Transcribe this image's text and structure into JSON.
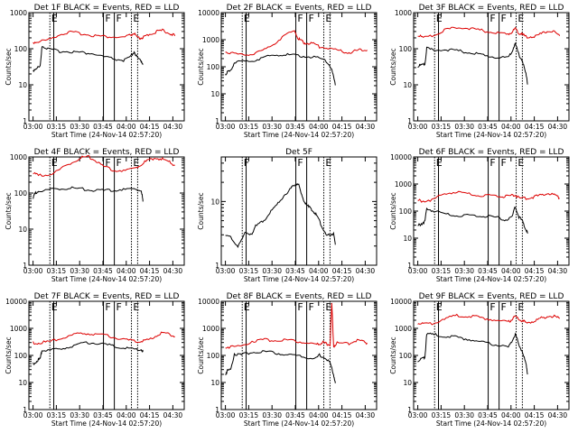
{
  "xlabel": "Start Time (24-Nov-14 02:57:20)",
  "ylabel": "Counts/sec",
  "x_tick_labels": [
    "03:00",
    "03:15",
    "03:30",
    "03:45",
    "04:00",
    "04:15",
    "04:30"
  ],
  "y_tick_labels": [
    "1",
    "10",
    "100",
    "1000",
    "10000"
  ],
  "colors": {
    "events": "#000000",
    "lld": "#dd0000"
  },
  "chart_data": [
    {
      "type": "line",
      "title": "Det 1F BLACK = Events, RED = LLD",
      "ylim": [
        1,
        1000
      ],
      "start": 13.5,
      "end": 44.5,
      "segments": [
        "E",
        "F",
        "F",
        "E"
      ],
      "series": [
        {
          "name": "Events",
          "x": [
            13.5,
            14.5,
            15.5,
            16,
            18,
            21,
            24,
            27,
            30,
            33,
            36,
            39,
            41,
            42,
            43,
            44,
            44.5
          ],
          "y": [
            25,
            28,
            30,
            120,
            100,
            90,
            85,
            75,
            70,
            60,
            55,
            50,
            60,
            80,
            50,
            45,
            40
          ]
        },
        {
          "name": "LLD",
          "x": [
            13.5,
            15,
            18,
            21,
            24,
            27,
            30,
            33,
            36,
            39,
            41,
            42,
            43,
            44,
            45,
            46,
            48,
            50,
            52,
            53.5
          ],
          "y": [
            150,
            150,
            170,
            250,
            300,
            280,
            240,
            210,
            200,
            200,
            250,
            280,
            200,
            190,
            200,
            240,
            300,
            340,
            280,
            220
          ]
        }
      ]
    },
    {
      "type": "line",
      "title": "Det 2F BLACK = Events, RED = LLD",
      "ylim": [
        1,
        10000
      ],
      "start": 13.5,
      "end": 44.5,
      "segments": [
        "E",
        "F",
        "F",
        "E"
      ],
      "series": [
        {
          "name": "Events",
          "x": [
            13.5,
            14,
            15,
            16,
            18,
            21,
            24,
            27,
            30,
            33,
            36,
            39,
            42,
            43.5,
            44.5
          ],
          "y": [
            50,
            60,
            70,
            150,
            160,
            170,
            200,
            250,
            280,
            270,
            260,
            230,
            150,
            80,
            20
          ]
        },
        {
          "name": "LLD",
          "x": [
            13.5,
            15,
            18,
            21,
            24,
            27,
            30,
            33,
            34,
            35,
            36,
            38,
            40,
            42,
            45,
            48,
            50,
            52,
            53.5
          ],
          "y": [
            350,
            300,
            280,
            300,
            400,
            700,
            1300,
            2000,
            1100,
            900,
            800,
            750,
            520,
            480,
            400,
            350,
            400,
            450,
            400
          ]
        }
      ]
    },
    {
      "type": "line",
      "title": "Det 3F BLACK = Events, RED = LLD",
      "ylim": [
        1,
        1000
      ],
      "start": 13.5,
      "end": 44.5,
      "segments": [
        "E",
        "F",
        "F",
        "E"
      ],
      "series": [
        {
          "name": "Events",
          "x": [
            13.5,
            14.5,
            15.5,
            16,
            18,
            21,
            24,
            27,
            30,
            33,
            36,
            39,
            40,
            41,
            42,
            43,
            44,
            44.5
          ],
          "y": [
            30,
            35,
            40,
            110,
            90,
            90,
            85,
            80,
            75,
            65,
            60,
            55,
            80,
            130,
            70,
            50,
            20,
            10
          ]
        },
        {
          "name": "LLD",
          "x": [
            13.5,
            15,
            18,
            21,
            24,
            27,
            30,
            33,
            36,
            39,
            40,
            41,
            42,
            43,
            44,
            46,
            48,
            50,
            52,
            53.5
          ],
          "y": [
            220,
            200,
            250,
            350,
            380,
            360,
            320,
            300,
            280,
            260,
            300,
            350,
            260,
            240,
            220,
            230,
            260,
            300,
            280,
            220
          ]
        }
      ]
    },
    {
      "type": "line",
      "title": "Det 4F BLACK = Events, RED = LLD",
      "ylim": [
        1,
        1000
      ],
      "start": 13.5,
      "end": 44.5,
      "segments": [
        "E",
        "F",
        "F",
        "E"
      ],
      "series": [
        {
          "name": "Events",
          "x": [
            13.5,
            14,
            15,
            18,
            21,
            24,
            27,
            30,
            33,
            36,
            39,
            42,
            44,
            44.5
          ],
          "y": [
            70,
            100,
            120,
            125,
            128,
            130,
            128,
            126,
            125,
            124,
            122,
            120,
            118,
            60
          ]
        },
        {
          "name": "LLD",
          "x": [
            13.5,
            15,
            18,
            21,
            24,
            27,
            29,
            31,
            33,
            36,
            39,
            42,
            44,
            46,
            48,
            50,
            52,
            53.5
          ],
          "y": [
            350,
            320,
            340,
            450,
            650,
            900,
            1000,
            850,
            600,
            450,
            400,
            450,
            600,
            850,
            1000,
            900,
            700,
            550
          ]
        }
      ]
    },
    {
      "type": "line",
      "title": "Det 5F",
      "ylim": [
        1,
        50
      ],
      "start": 13.5,
      "end": 44.5,
      "segments": [
        "F",
        "F",
        "E"
      ],
      "series": [
        {
          "name": "Events",
          "x": [
            13.5,
            15,
            17,
            19,
            21,
            22,
            24,
            26,
            28,
            30,
            32,
            33,
            34,
            35,
            36,
            37,
            38,
            39,
            40,
            41,
            42,
            43,
            44,
            44.5
          ],
          "y": [
            3,
            3,
            2,
            3,
            3,
            4,
            5,
            7,
            9,
            12,
            15,
            18,
            20,
            13,
            10,
            8,
            7,
            6,
            5,
            4,
            3,
            3,
            3,
            2
          ]
        }
      ]
    },
    {
      "type": "line",
      "title": "Det 6F BLACK = Events, RED = LLD",
      "ylim": [
        1,
        10000
      ],
      "start": 13.5,
      "end": 44.5,
      "segments": [
        "E",
        "F",
        "F",
        "E"
      ],
      "series": [
        {
          "name": "Events",
          "x": [
            13.5,
            14.5,
            15.5,
            16,
            18,
            21,
            24,
            27,
            30,
            33,
            36,
            38,
            40,
            41,
            42,
            43,
            44,
            44.5
          ],
          "y": [
            30,
            35,
            40,
            120,
            100,
            80,
            75,
            70,
            65,
            60,
            55,
            50,
            60,
            150,
            60,
            40,
            20,
            15
          ]
        },
        {
          "name": "LLD",
          "x": [
            13.5,
            15,
            18,
            21,
            24,
            27,
            30,
            33,
            36,
            38,
            40,
            41,
            42,
            44,
            46,
            48,
            50,
            52,
            53.5
          ],
          "y": [
            260,
            240,
            260,
            420,
            500,
            460,
            420,
            380,
            350,
            320,
            360,
            420,
            320,
            300,
            320,
            360,
            440,
            400,
            320
          ]
        }
      ]
    },
    {
      "type": "line",
      "title": "Det 7F BLACK = Events, RED = LLD",
      "ylim": [
        1,
        10000
      ],
      "start": 13.5,
      "end": 44.5,
      "segments": [
        "E",
        "F",
        "F",
        "E"
      ],
      "series": [
        {
          "name": "Events",
          "x": [
            13.5,
            14.5,
            15.5,
            16,
            18,
            21,
            24,
            27,
            30,
            33,
            36,
            39,
            42,
            44,
            44.5
          ],
          "y": [
            50,
            60,
            70,
            150,
            160,
            180,
            220,
            260,
            280,
            260,
            230,
            200,
            180,
            160,
            130
          ]
        },
        {
          "name": "LLD",
          "x": [
            13.5,
            15,
            18,
            21,
            24,
            27,
            30,
            33,
            36,
            39,
            42,
            44,
            46,
            48,
            50,
            52,
            53.5
          ],
          "y": [
            300,
            280,
            300,
            400,
            550,
            700,
            650,
            550,
            450,
            380,
            350,
            350,
            400,
            500,
            650,
            600,
            500
          ]
        }
      ]
    },
    {
      "type": "line",
      "title": "Det 8F BLACK = Events, RED = LLD",
      "ylim": [
        1,
        10000
      ],
      "start": 13.5,
      "end": 44.5,
      "segments": [
        "E",
        "F",
        "F",
        "E"
      ],
      "series": [
        {
          "name": "Events",
          "x": [
            13.5,
            14,
            15,
            16,
            18,
            21,
            24,
            27,
            30,
            33,
            36,
            39,
            40,
            42,
            43,
            44,
            44.5
          ],
          "y": [
            20,
            25,
            30,
            120,
            110,
            140,
            130,
            120,
            110,
            100,
            90,
            80,
            100,
            70,
            50,
            20,
            10
          ]
        },
        {
          "name": "LLD",
          "x": [
            13.5,
            15,
            18,
            21,
            24,
            27,
            30,
            33,
            36,
            39,
            40,
            41,
            42,
            43,
            43.5,
            44,
            45,
            48,
            50,
            52,
            53.5
          ],
          "y": [
            200,
            190,
            220,
            350,
            400,
            380,
            350,
            320,
            300,
            250,
            280,
            320,
            260,
            230,
            8000,
            220,
            300,
            280,
            350,
            320,
            270
          ]
        }
      ]
    },
    {
      "type": "line",
      "title": "Det 9F BLACK = Events, RED = LLD",
      "ylim": [
        1,
        10000
      ],
      "start": 13.5,
      "end": 44.5,
      "segments": [
        "E",
        "F",
        "F",
        "E"
      ],
      "series": [
        {
          "name": "Events",
          "x": [
            13.5,
            14.5,
            15.5,
            16,
            18,
            21,
            24,
            27,
            30,
            33,
            36,
            39,
            40,
            41,
            42,
            43,
            44,
            44.5
          ],
          "y": [
            60,
            70,
            90,
            700,
            600,
            500,
            450,
            400,
            350,
            300,
            250,
            200,
            300,
            600,
            250,
            150,
            50,
            20
          ]
        },
        {
          "name": "LLD",
          "x": [
            13.5,
            15,
            18,
            21,
            24,
            27,
            30,
            33,
            36,
            39,
            40,
            41,
            42,
            43,
            44,
            46,
            48,
            50,
            52,
            53.5
          ],
          "y": [
            1500,
            1400,
            1600,
            2500,
            3000,
            2800,
            2500,
            2200,
            2000,
            1800,
            2200,
            2800,
            2000,
            1800,
            1700,
            1900,
            2400,
            2800,
            2600,
            2200
          ]
        }
      ]
    }
  ]
}
